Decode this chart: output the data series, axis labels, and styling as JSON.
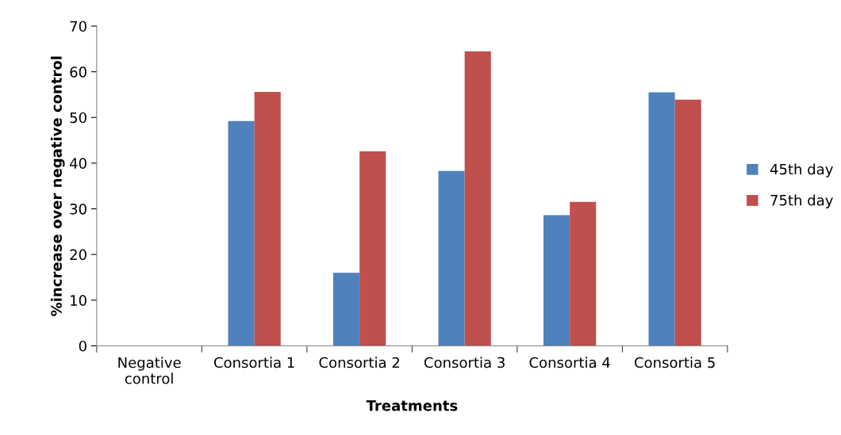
{
  "chart_data": {
    "type": "bar",
    "xlabel": "Treatments",
    "ylabel": "%increase over negative control",
    "categories": [
      "Negative\ncontrol",
      "Consortia 1",
      "Consortia 2",
      "Consortia 3",
      "Consortia 4",
      "Consortia 5"
    ],
    "series": [
      {
        "name": "45th day",
        "color": "#4f81bd",
        "values": [
          0,
          49.2,
          16.0,
          38.3,
          28.6,
          55.5
        ]
      },
      {
        "name": "75th day",
        "color": "#c0504d",
        "values": [
          0,
          55.6,
          42.6,
          64.5,
          31.5,
          53.9
        ]
      }
    ],
    "ylim": [
      0,
      70
    ],
    "yticks": [
      0,
      10,
      20,
      30,
      40,
      50,
      60,
      70
    ],
    "grid": false,
    "legend": "right"
  }
}
